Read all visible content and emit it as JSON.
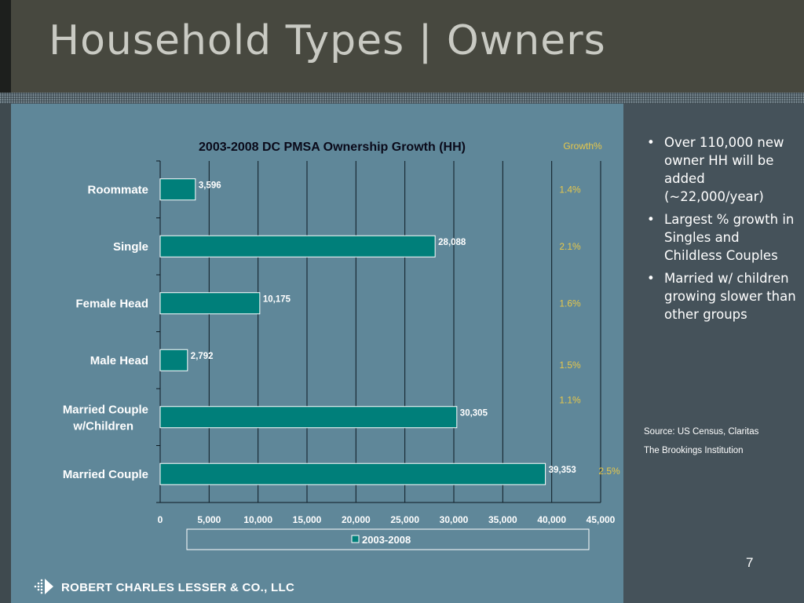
{
  "slide": {
    "title": "Household Types | Owners",
    "page_number": "7",
    "company": "ROBERT CHARLES LESSER & CO., LLC"
  },
  "bullets": [
    "Over 110,000 new owner HH will be added (~22,000/year)",
    "Largest % growth in Singles and Childless Couples",
    "Married w/ children growing slower than other groups"
  ],
  "sources": [
    "Source: US Census, Claritas",
    "The Brookings Institution"
  ],
  "colors": {
    "bar": "#007f7a",
    "growth_text": "#e8c84a",
    "panel": "#5f8799"
  },
  "chart_data": {
    "type": "bar",
    "orientation": "horizontal",
    "title": "2003-2008 DC PMSA Ownership Growth (HH)",
    "categories": [
      "Roommate",
      "Single",
      "Female Head",
      "Male Head",
      "Married Couple w/Children",
      "Married Couple"
    ],
    "series": [
      {
        "name": "2003-2008",
        "values": [
          3596,
          28088,
          10175,
          2792,
          30305,
          39353
        ]
      }
    ],
    "data_labels": [
      "3,596",
      "28,088",
      "10,175",
      "2,792",
      "30,305",
      "39,353"
    ],
    "growth_header": "Growth%",
    "growth": [
      "1.4%",
      "2.1%",
      "1.6%",
      "1.5%",
      "1.1%",
      "2.5%"
    ],
    "xlim": [
      0,
      45000
    ],
    "xticks": [
      "0",
      "5,000",
      "10,000",
      "15,000",
      "20,000",
      "25,000",
      "30,000",
      "35,000",
      "40,000",
      "45,000"
    ],
    "grid": true,
    "legend_position": "bottom"
  }
}
